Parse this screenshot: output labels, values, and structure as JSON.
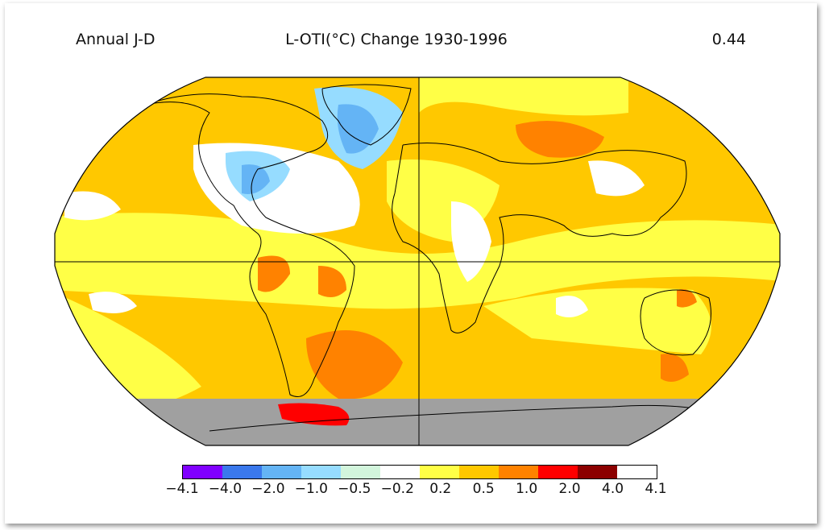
{
  "header": {
    "left": "Annual J-D",
    "center": "L-OTI(°C) Change 1930-1996",
    "right": "0.44"
  },
  "colorbar": {
    "colors": [
      "#8000ff",
      "#3a78ec",
      "#64b4f5",
      "#96dcff",
      "#d2f5dc",
      "#ffffff",
      "#ffff46",
      "#ffc800",
      "#ff8200",
      "#ff0000",
      "#8c0000"
    ],
    "labels": [
      "−4.1",
      "−4.0",
      "−2.0",
      "−1.0",
      "−0.5",
      "−0.2",
      "0.2",
      "0.5",
      "1.0",
      "2.0",
      "4.0",
      "4.1"
    ]
  },
  "map": {
    "base_color": "#ffc800",
    "land_ice_color": "#a0a0a0",
    "regions": [
      "North Atlantic / Greenland",
      "Siberia",
      "South Atlantic",
      "Antarctic Peninsula",
      "Australia",
      "Equatorial Pacific"
    ]
  }
}
